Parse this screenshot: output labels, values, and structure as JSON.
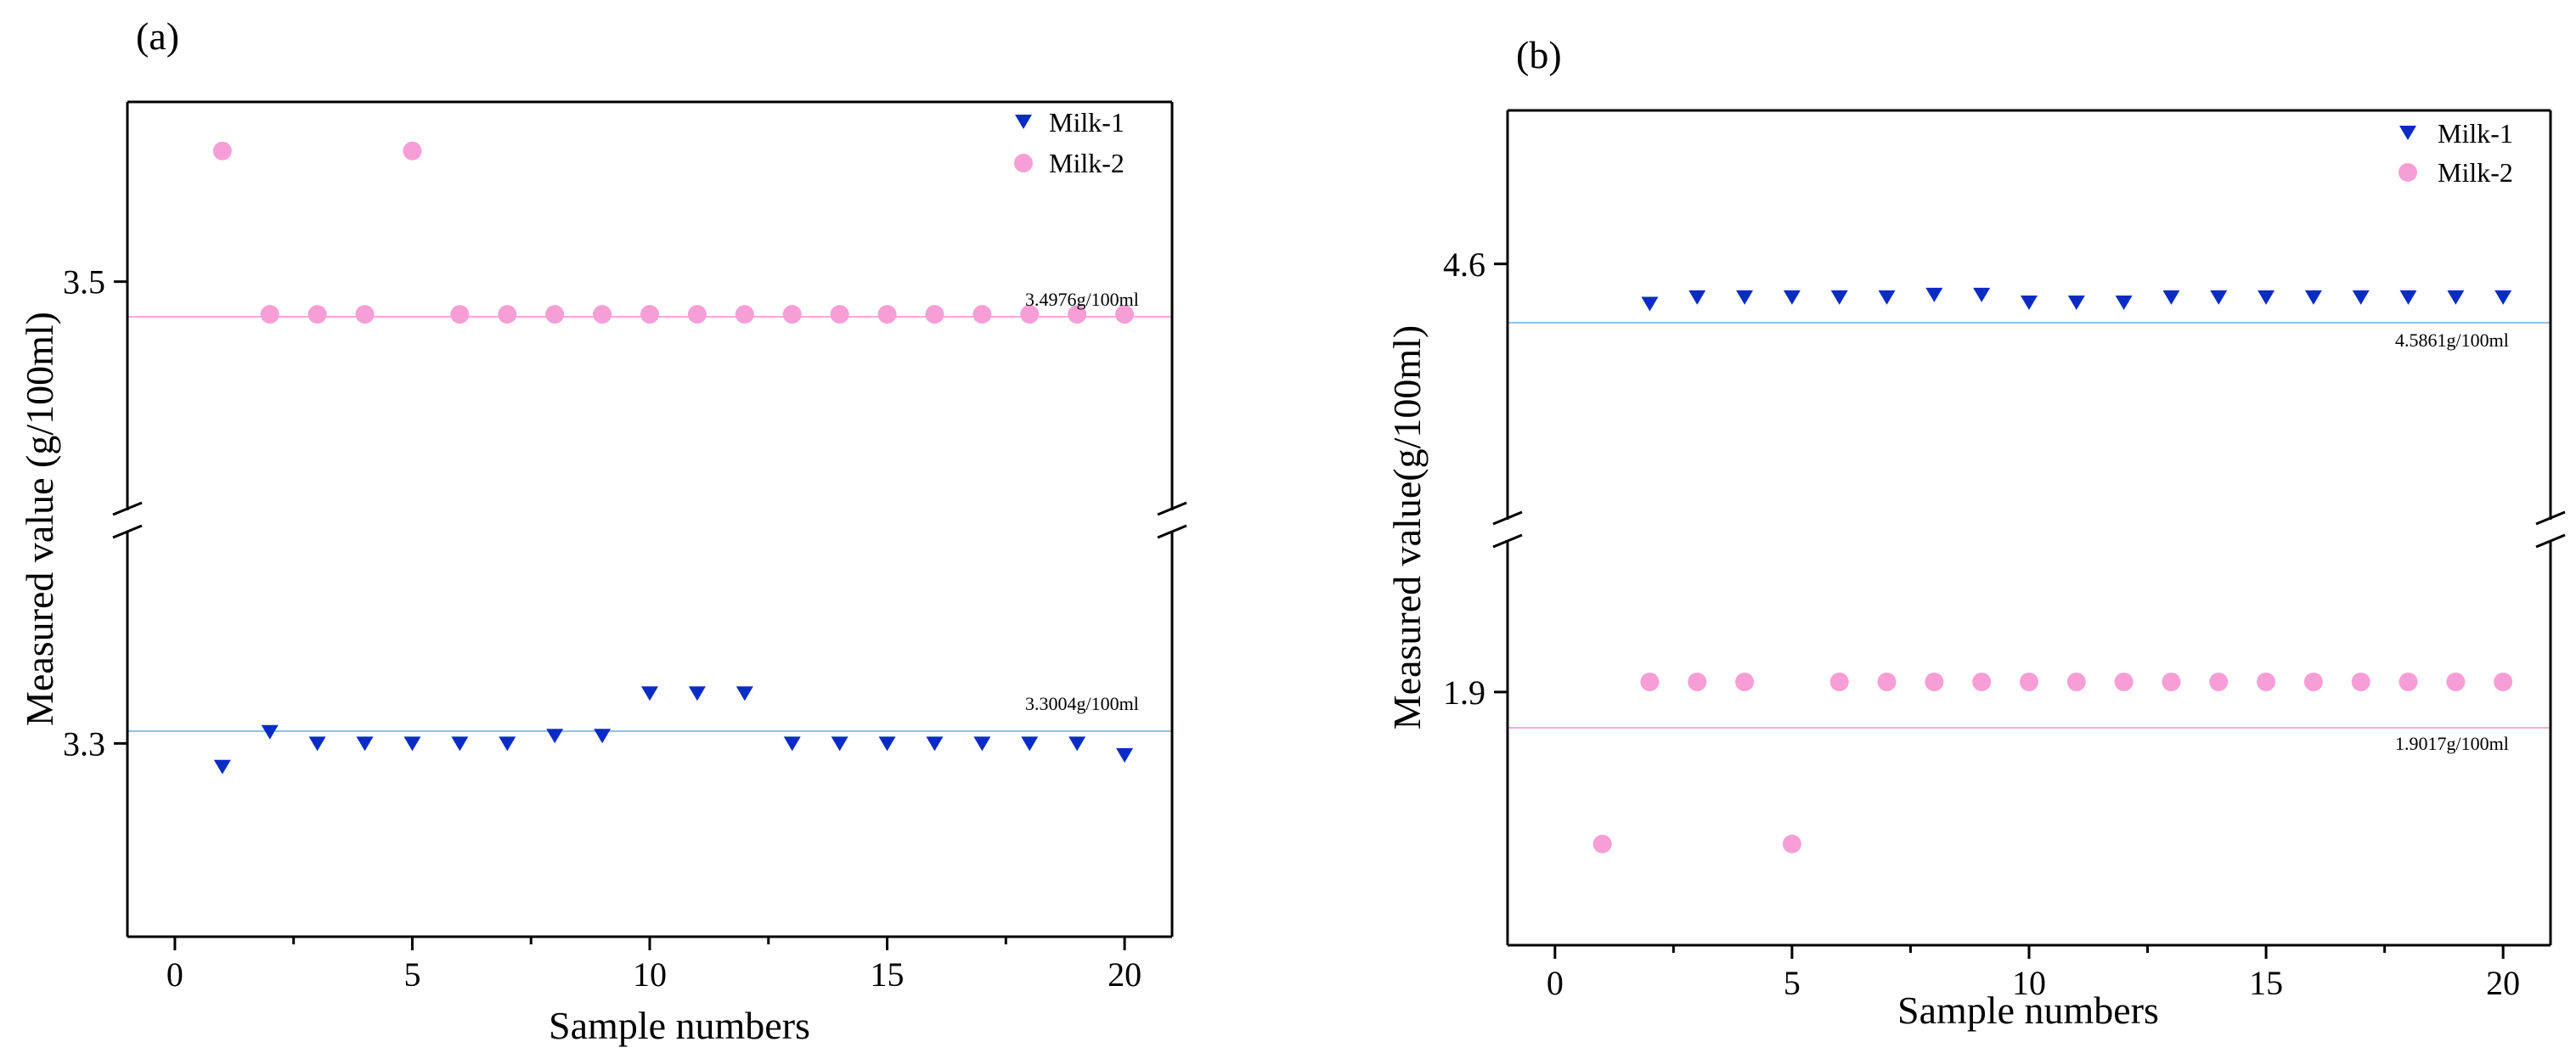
{
  "chart_data": [
    {
      "type": "scatter",
      "panel_label": "(a)",
      "title": "",
      "xlabel": "Sample numbers",
      "ylabel": "Measured value (g/100ml)",
      "xlim": [
        -1,
        21
      ],
      "xticks": [
        0,
        5,
        10,
        15,
        20
      ],
      "x_tick_labels": [
        "0",
        "5",
        "10",
        "15",
        "20"
      ],
      "broken_y_axis": true,
      "upper_segment": {
        "ylim": [
          3.43,
          3.555
        ],
        "ticks": [
          3.5
        ],
        "tick_labels": [
          "3.5"
        ]
      },
      "lower_segment": {
        "ylim": [
          3.25,
          3.355
        ],
        "ticks": [
          3.3
        ],
        "tick_labels": [
          "3.3"
        ]
      },
      "grid": false,
      "legend_position": "top-right",
      "series": [
        {
          "name": "Milk-1",
          "marker": "triangle-down",
          "color": "#0b2cc4",
          "x": [
            1,
            2,
            3,
            4,
            5,
            6,
            7,
            8,
            9,
            10,
            11,
            12,
            13,
            14,
            15,
            16,
            17,
            18,
            19,
            20
          ],
          "y": [
            3.294,
            3.303,
            3.3,
            3.3,
            3.3,
            3.3,
            3.3,
            3.302,
            3.302,
            3.313,
            3.313,
            3.313,
            3.3,
            3.3,
            3.3,
            3.3,
            3.3,
            3.3,
            3.3,
            3.297
          ]
        },
        {
          "name": "Milk-2",
          "marker": "circle",
          "color": "#f79ed6",
          "x": [
            1,
            2,
            3,
            4,
            5,
            6,
            7,
            8,
            9,
            10,
            11,
            12,
            13,
            14,
            15,
            16,
            17,
            18,
            19,
            20
          ],
          "y": [
            3.54,
            3.49,
            3.49,
            3.49,
            3.54,
            3.49,
            3.49,
            3.49,
            3.49,
            3.49,
            3.49,
            3.49,
            3.49,
            3.49,
            3.49,
            3.49,
            3.49,
            3.49,
            3.49,
            3.49
          ]
        }
      ],
      "reference_lines": [
        {
          "y": 3.4976,
          "label": "3.4976g/100ml",
          "color": "#f5a9dc"
        },
        {
          "y": 3.3004,
          "label": "3.3004g/100ml",
          "color": "#8fc2e6"
        }
      ]
    },
    {
      "type": "scatter",
      "panel_label": "(b)",
      "title": "",
      "xlabel": "Sample numbers",
      "ylabel": "Measured value(g/100ml)",
      "xlim": [
        -1,
        21
      ],
      "xticks": [
        0,
        5,
        10,
        15,
        20
      ],
      "x_tick_labels": [
        "0",
        "5",
        "10",
        "15",
        "20"
      ],
      "broken_y_axis": true,
      "upper_segment": {
        "ylim": [
          4.5,
          4.66
        ],
        "ticks": [
          4.6
        ],
        "tick_labels": [
          "4.6"
        ]
      },
      "lower_segment": {
        "ylim": [
          1.8,
          1.96
        ],
        "ticks": [
          1.9
        ],
        "tick_labels": [
          "1.9"
        ]
      },
      "grid": false,
      "legend_position": "top-right",
      "series": [
        {
          "name": "Milk-1",
          "marker": "triangle-down",
          "color": "#0b2cc4",
          "x": [
            2,
            3,
            4,
            5,
            6,
            7,
            8,
            9,
            10,
            11,
            12,
            13,
            14,
            15,
            16,
            17,
            18,
            19,
            20
          ],
          "y": [
            4.5845,
            4.587,
            4.587,
            4.587,
            4.587,
            4.587,
            4.588,
            4.588,
            4.585,
            4.585,
            4.585,
            4.587,
            4.587,
            4.587,
            4.587,
            4.587,
            4.587,
            4.587,
            4.587
          ]
        },
        {
          "name": "Milk-2",
          "marker": "circle",
          "color": "#f79ed6",
          "x": [
            1,
            2,
            3,
            4,
            5,
            6,
            7,
            8,
            9,
            10,
            11,
            12,
            13,
            14,
            15,
            16,
            17,
            18,
            19,
            20
          ],
          "y": [
            1.84,
            1.904,
            1.904,
            1.904,
            1.84,
            1.904,
            1.904,
            1.904,
            1.904,
            1.904,
            1.904,
            1.904,
            1.904,
            1.904,
            1.904,
            1.904,
            1.904,
            1.904,
            1.904,
            1.904
          ]
        }
      ],
      "reference_lines": [
        {
          "y": 4.5861,
          "label": "4.5861g/100ml",
          "color": "#8fc2e6"
        },
        {
          "y": 1.9017,
          "label": "1.9017g/100ml",
          "color": "#f5a9dc"
        }
      ]
    }
  ]
}
